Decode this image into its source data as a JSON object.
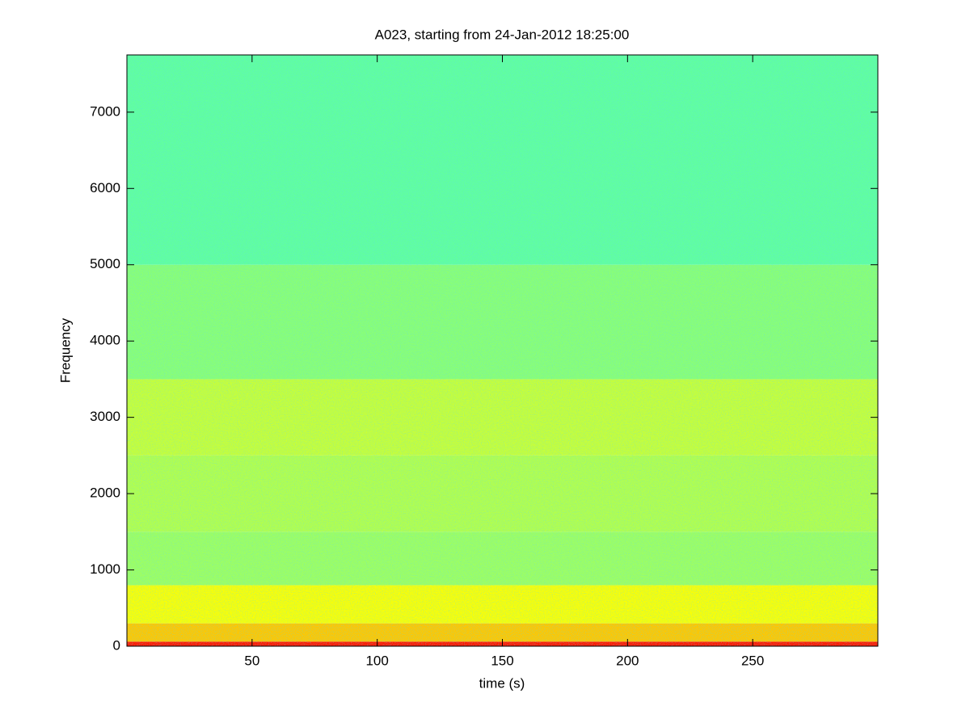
{
  "chart_data": {
    "type": "spectrogram",
    "title": "A023, starting from 24-Jan-2012 18:25:00",
    "x_label": "time (s)",
    "y_label": "Frequency",
    "xlim": [
      0,
      300
    ],
    "ylim": [
      0,
      7750
    ],
    "xticks": [
      50,
      100,
      150,
      200,
      250
    ],
    "yticks": [
      0,
      1000,
      2000,
      3000,
      4000,
      5000,
      6000,
      7000
    ],
    "colormap": "jet",
    "clim": [
      0,
      1
    ],
    "bands": [
      0,
      60,
      300,
      800,
      1500,
      2500,
      3500,
      5000,
      7750
    ],
    "levels": [
      0.85,
      0.68,
      0.62,
      0.53,
      0.55,
      0.57,
      0.51,
      0.47
    ]
  }
}
